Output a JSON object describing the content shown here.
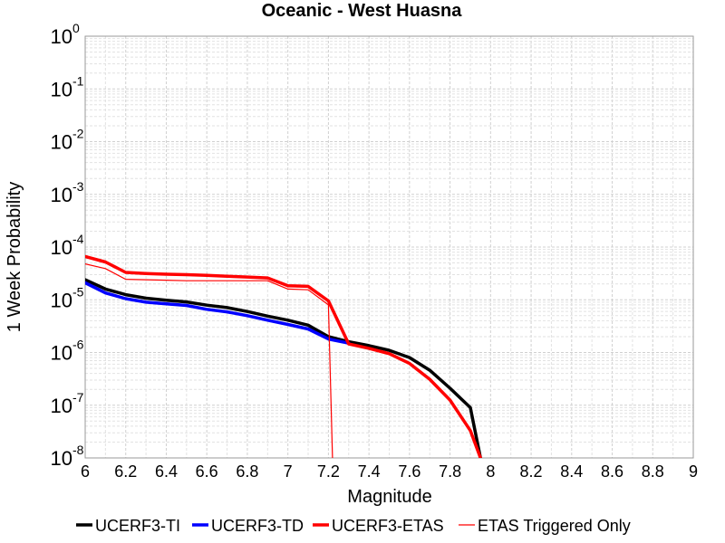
{
  "chart_data": {
    "type": "line",
    "title": "Oceanic - West Huasna",
    "xlabel": "Magnitude",
    "ylabel": "1 Week Probability",
    "xlim": [
      6,
      9
    ],
    "ylim": [
      1e-08,
      1
    ],
    "yscale": "log",
    "grid": true,
    "legend_position": "bottom",
    "x_ticks": [
      "6",
      "6.2",
      "6.4",
      "6.6",
      "6.8",
      "7",
      "7.2",
      "7.4",
      "7.6",
      "7.8",
      "8",
      "8.2",
      "8.4",
      "8.6",
      "8.8",
      "9"
    ],
    "y_ticks": [
      {
        "base": "10",
        "exp": "-8"
      },
      {
        "base": "10",
        "exp": "-7"
      },
      {
        "base": "10",
        "exp": "-6"
      },
      {
        "base": "10",
        "exp": "-5"
      },
      {
        "base": "10",
        "exp": "-4"
      },
      {
        "base": "10",
        "exp": "-3"
      },
      {
        "base": "10",
        "exp": "-2"
      },
      {
        "base": "10",
        "exp": "-1"
      },
      {
        "base": "10",
        "exp": "0"
      }
    ],
    "series": [
      {
        "name": "UCERF3-TI",
        "color": "#000000",
        "width": "thick",
        "x": [
          6.0,
          6.1,
          6.2,
          6.3,
          6.4,
          6.5,
          6.6,
          6.7,
          6.8,
          6.9,
          7.0,
          7.1,
          7.2,
          7.3,
          7.4,
          7.5,
          7.6,
          7.7,
          7.8,
          7.9,
          7.95
        ],
        "y": [
          2.4e-05,
          1.6e-05,
          1.25e-05,
          1.07e-05,
          9.8e-06,
          9.1e-06,
          7.9e-06,
          7.1e-06,
          6e-06,
          4.9e-06,
          4.1e-06,
          3.3e-06,
          2e-06,
          1.6e-06,
          1.35e-06,
          1.1e-06,
          8e-07,
          4.6e-07,
          2.1e-07,
          9e-08,
          1e-08
        ]
      },
      {
        "name": "UCERF3-TD",
        "color": "#0000ff",
        "width": "thick",
        "x": [
          6.0,
          6.1,
          6.2,
          6.3,
          6.4,
          6.5,
          6.6,
          6.7,
          6.8,
          6.9,
          7.0,
          7.1,
          7.2,
          7.3
        ],
        "y": [
          2.1e-05,
          1.35e-05,
          1.05e-05,
          9e-06,
          8.4e-06,
          7.8e-06,
          6.6e-06,
          5.9e-06,
          5e-06,
          4.1e-06,
          3.4e-06,
          2.8e-06,
          1.8e-06,
          1.5e-06
        ]
      },
      {
        "name": "UCERF3-ETAS",
        "color": "#ff0000",
        "width": "thick",
        "x": [
          6.0,
          6.1,
          6.2,
          6.3,
          6.4,
          6.5,
          6.6,
          6.7,
          6.8,
          6.9,
          7.0,
          7.1,
          7.2,
          7.3,
          7.4,
          7.5,
          7.6,
          7.7,
          7.8,
          7.9,
          7.95
        ],
        "y": [
          6.6e-05,
          5.2e-05,
          3.3e-05,
          3.15e-05,
          3.05e-05,
          3e-05,
          2.9e-05,
          2.8e-05,
          2.7e-05,
          2.6e-05,
          1.85e-05,
          1.8e-05,
          9.5e-06,
          1.45e-06,
          1.2e-06,
          9.5e-07,
          6.2e-07,
          3.1e-07,
          1.25e-07,
          3.3e-08,
          1e-08
        ]
      },
      {
        "name": "ETAS Triggered Only",
        "color": "#ff0000",
        "width": "thin",
        "x": [
          6.0,
          6.1,
          6.2,
          6.3,
          6.4,
          6.5,
          6.6,
          6.7,
          6.8,
          6.9,
          7.0,
          7.1,
          7.2,
          7.22
        ],
        "y": [
          4.8e-05,
          3.9e-05,
          2.45e-05,
          2.4e-05,
          2.35e-05,
          2.3e-05,
          2.3e-05,
          2.3e-05,
          2.3e-05,
          2.3e-05,
          1.6e-05,
          1.55e-05,
          8e-06,
          1e-08
        ]
      }
    ]
  }
}
